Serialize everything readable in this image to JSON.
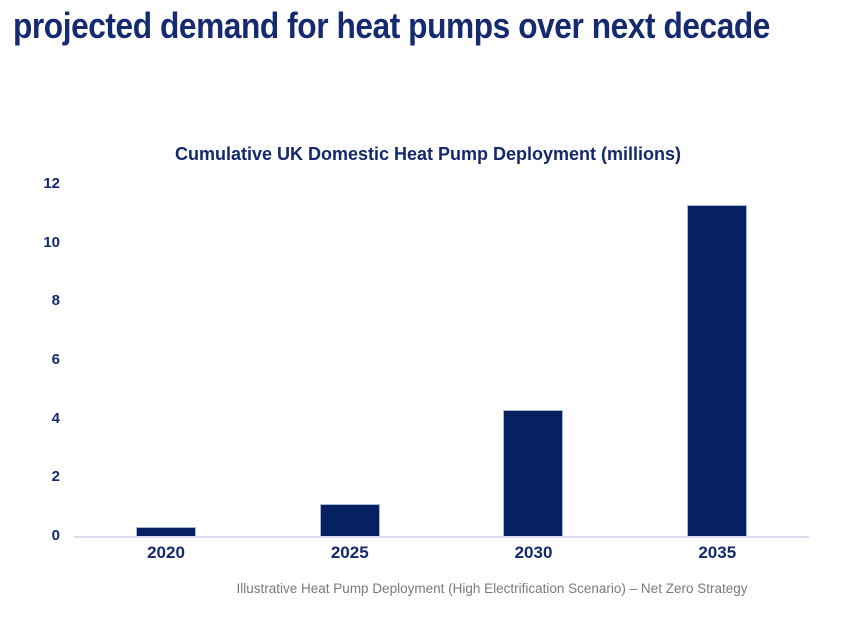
{
  "page": {
    "headline": "projected demand for heat pumps over next decade"
  },
  "colors": {
    "headline": "#152a70",
    "title": "#14286e",
    "tick": "#14286e",
    "bar": "#062161",
    "axis_line": "#dcdcef",
    "caption": "#7a7a7a"
  },
  "chart_data": {
    "type": "bar",
    "title": "Cumulative UK Domestic Heat Pump Deployment (millions)",
    "categories": [
      "2020",
      "2025",
      "2030",
      "2035"
    ],
    "values": [
      0.3,
      1.1,
      4.3,
      11.3
    ],
    "ylabel": "",
    "xlabel": "",
    "ylim": [
      0,
      12
    ],
    "yticks": [
      0,
      2,
      4,
      6,
      8,
      10,
      12
    ],
    "grid": false,
    "legend": "none",
    "caption": "Illustrative Heat Pump Deployment (High Electrification Scenario) – Net Zero Strategy"
  }
}
